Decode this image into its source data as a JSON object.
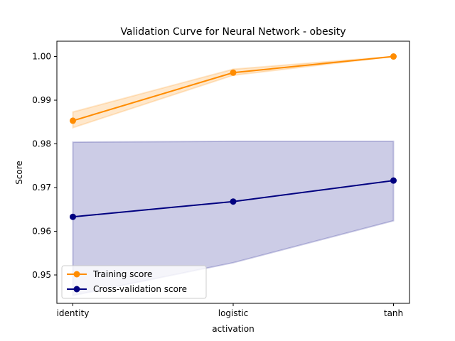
{
  "chart_data": {
    "type": "line",
    "title": "Validation Curve for Neural Network - obesity",
    "xlabel": "activation",
    "ylabel": "Score",
    "categories": [
      "identity",
      "logistic",
      "tanh"
    ],
    "ylim": [
      0.9435,
      1.0035
    ],
    "yticks": [
      0.95,
      0.96,
      0.97,
      0.98,
      0.99,
      1.0
    ],
    "ytick_labels": [
      "0.95",
      "0.96",
      "0.97",
      "0.98",
      "0.99",
      "1.00"
    ],
    "grid": false,
    "legend_position": "lower-left",
    "series": [
      {
        "name": "Training score",
        "color": "#ff8c00",
        "values": [
          0.9853,
          0.9963,
          1.0
        ],
        "band_lower": [
          0.9837,
          0.9957,
          1.0
        ],
        "band_upper": [
          0.9873,
          0.9971,
          1.0
        ]
      },
      {
        "name": "Cross-validation score",
        "color": "#000080",
        "values": [
          0.9633,
          0.9668,
          0.9716
        ],
        "band_lower": [
          0.9453,
          0.9528,
          0.9624
        ],
        "band_upper": [
          0.9804,
          0.9806,
          0.9806
        ]
      }
    ]
  }
}
